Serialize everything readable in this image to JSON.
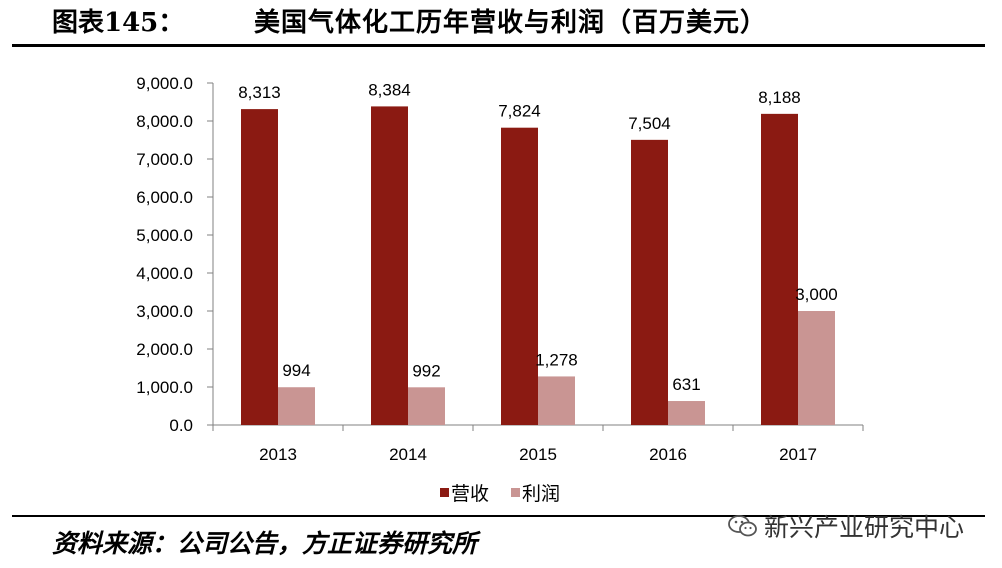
{
  "header": {
    "figure_label": "图表145：",
    "title": "美国气体化工历年营收与利润（百万美元）"
  },
  "footer": {
    "source": "资料来源：公司公告，方正证券研究所",
    "watermark": "新兴产业研究中心"
  },
  "colors": {
    "revenue": "#8B1A12",
    "profit": "#C99593",
    "axis": "#808080"
  },
  "chart_data": {
    "type": "bar",
    "categories": [
      "2013",
      "2014",
      "2015",
      "2016",
      "2017"
    ],
    "series": [
      {
        "name": "营收",
        "values": [
          8313,
          8384,
          7824,
          7504,
          8188
        ],
        "labels": [
          "8,313",
          "8,384",
          "7,824",
          "7,504",
          "8,188"
        ]
      },
      {
        "name": "利润",
        "values": [
          994,
          992,
          1278,
          631,
          3000
        ],
        "labels": [
          "994",
          "992",
          "1,278",
          "631",
          "3,000"
        ]
      }
    ],
    "y_ticks": [
      "0.0",
      "1,000.0",
      "2,000.0",
      "3,000.0",
      "4,000.0",
      "5,000.0",
      "6,000.0",
      "7,000.0",
      "8,000.0",
      "9,000.0"
    ],
    "ylim": [
      0,
      9000
    ],
    "grid": false,
    "legend_position": "bottom"
  }
}
